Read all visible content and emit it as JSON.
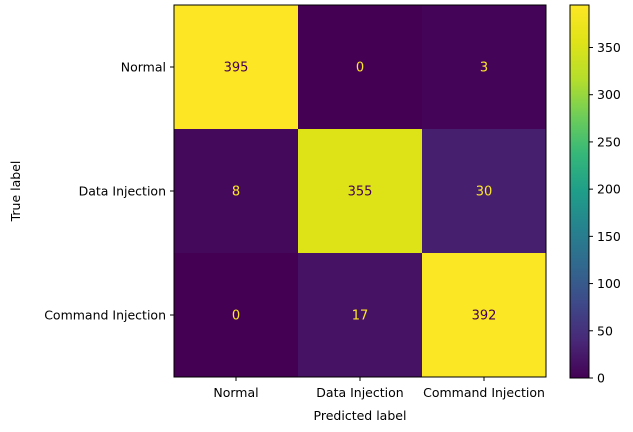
{
  "chart_data": {
    "type": "heatmap",
    "title": "",
    "xlabel": "Predicted label",
    "ylabel": "True label",
    "row_labels": [
      "Normal",
      "Data Injection",
      "Command Injection"
    ],
    "col_labels": [
      "Normal",
      "Data Injection",
      "Command Injection"
    ],
    "values": [
      [
        395,
        0,
        3
      ],
      [
        8,
        355,
        30
      ],
      [
        0,
        17,
        392
      ]
    ],
    "colormap": "viridis",
    "color_range": [
      0,
      395
    ],
    "colorbar_ticks": [
      0,
      50,
      100,
      150,
      200,
      250,
      300,
      350
    ],
    "grid": false,
    "text_color_dark_cells": "#fde725",
    "text_color_light_cells": "#440154"
  }
}
